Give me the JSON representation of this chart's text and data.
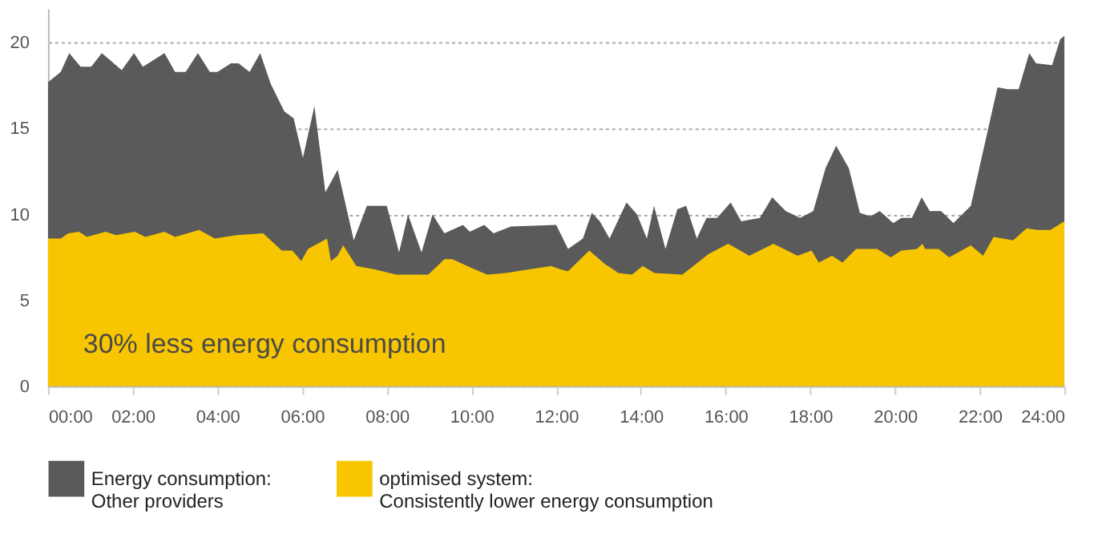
{
  "chart_data": {
    "type": "area",
    "xlim": [
      0,
      24
    ],
    "ylim": [
      0,
      22
    ],
    "xticks": [
      {
        "value": 0,
        "label": "00:00"
      },
      {
        "value": 2,
        "label": "02:00"
      },
      {
        "value": 4,
        "label": "04:00"
      },
      {
        "value": 6,
        "label": "06:00"
      },
      {
        "value": 8,
        "label": "08:00"
      },
      {
        "value": 10,
        "label": "10:00"
      },
      {
        "value": 12,
        "label": "12:00"
      },
      {
        "value": 14,
        "label": "14:00"
      },
      {
        "value": 16,
        "label": "16:00"
      },
      {
        "value": 18,
        "label": "18:00"
      },
      {
        "value": 20,
        "label": "20:00"
      },
      {
        "value": 22,
        "label": "22:00"
      },
      {
        "value": 24,
        "label": "24:00"
      }
    ],
    "yticks": [
      0,
      5,
      10,
      15,
      20
    ],
    "grid": "y",
    "legend": "bottom",
    "annotations": [
      "30% less energy consumption"
    ],
    "series": [
      {
        "name": "Energy consumption:\nOther providers",
        "color": "#5a5a5a",
        "x": [
          0,
          0.3,
          0.5,
          0.77,
          1.02,
          1.27,
          1.74,
          2.03,
          2.24,
          2.75,
          3.0,
          3.25,
          3.54,
          3.82,
          4.0,
          4.32,
          4.5,
          4.76,
          5.01,
          5.26,
          5.58,
          5.8,
          6.02,
          6.29,
          6.55,
          6.84,
          7.22,
          7.53,
          8.0,
          8.29,
          8.5,
          8.82,
          9.08,
          9.36,
          9.8,
          9.96,
          10.3,
          10.52,
          10.93,
          12.0,
          12.28,
          12.63,
          12.84,
          13.03,
          13.26,
          13.66,
          13.91,
          14.14,
          14.31,
          14.58,
          14.86,
          15.07,
          15.32,
          15.55,
          15.8,
          16.12,
          16.37,
          16.81,
          17.1,
          17.42,
          17.76,
          18.07,
          18.36,
          18.61,
          18.91,
          19.17,
          19.42,
          19.64,
          19.96,
          20.15,
          20.4,
          20.63,
          20.82,
          21.09,
          21.38,
          21.79,
          22.42,
          22.67,
          22.92,
          23.17,
          23.33,
          23.71,
          23.9,
          24.0
        ],
        "values": [
          17.7,
          18.3,
          19.4,
          18.6,
          18.6,
          19.4,
          18.4,
          19.4,
          18.6,
          19.4,
          18.3,
          18.3,
          19.4,
          18.3,
          18.3,
          18.8,
          18.8,
          18.3,
          19.4,
          17.6,
          16.0,
          15.6,
          13.3,
          16.3,
          11.3,
          12.6,
          8.5,
          10.5,
          10.5,
          7.8,
          10.0,
          7.8,
          10.0,
          8.9,
          9.4,
          9.0,
          9.4,
          8.9,
          9.3,
          9.4,
          8.0,
          8.6,
          10.1,
          9.6,
          8.6,
          10.7,
          10.0,
          8.6,
          10.5,
          8.0,
          10.3,
          10.5,
          8.6,
          9.8,
          9.8,
          10.7,
          9.6,
          9.8,
          11.0,
          10.2,
          9.8,
          10.2,
          12.7,
          14.0,
          12.7,
          10.1,
          9.9,
          10.2,
          9.5,
          9.8,
          9.8,
          11.0,
          10.2,
          10.2,
          9.5,
          10.5,
          17.4,
          17.3,
          17.3,
          19.4,
          18.8,
          18.7,
          20.2,
          20.4
        ]
      },
      {
        "name": "optimised system:\nConsistently lower energy consumption",
        "color": "#f8c600",
        "x": [
          0,
          0.3,
          0.48,
          0.73,
          0.92,
          1.36,
          1.61,
          2.05,
          2.3,
          2.75,
          3.0,
          3.57,
          3.94,
          4.45,
          5.08,
          5.52,
          5.77,
          5.98,
          6.14,
          6.59,
          6.68,
          6.84,
          6.97,
          7.28,
          7.72,
          8.22,
          8.98,
          9.36,
          9.55,
          9.99,
          10.37,
          10.81,
          11.88,
          12.1,
          12.28,
          12.53,
          12.78,
          13.16,
          13.47,
          13.79,
          14.04,
          14.32,
          14.98,
          15.24,
          15.6,
          16.06,
          16.56,
          17.13,
          17.7,
          18.03,
          18.2,
          18.51,
          18.76,
          19.08,
          19.58,
          19.9,
          20.15,
          20.52,
          20.65,
          20.71,
          21.03,
          21.28,
          21.79,
          22.08,
          22.33,
          22.79,
          23.11,
          23.36,
          23.67,
          24.0
        ],
        "values": [
          8.6,
          8.6,
          8.9,
          9.0,
          8.7,
          9.0,
          8.8,
          9.0,
          8.7,
          9.0,
          8.7,
          9.1,
          8.6,
          8.8,
          8.9,
          7.9,
          7.9,
          7.3,
          8.0,
          8.6,
          7.3,
          7.6,
          8.2,
          7.0,
          6.8,
          6.5,
          6.5,
          7.4,
          7.4,
          6.9,
          6.5,
          6.6,
          7.0,
          6.8,
          6.7,
          7.3,
          7.9,
          7.1,
          6.6,
          6.5,
          7.0,
          6.6,
          6.5,
          7.0,
          7.7,
          8.3,
          7.6,
          8.3,
          7.6,
          7.9,
          7.2,
          7.6,
          7.2,
          8.0,
          8.0,
          7.5,
          7.9,
          8.0,
          8.3,
          8.0,
          8.0,
          7.5,
          8.2,
          7.6,
          8.7,
          8.5,
          9.2,
          9.1,
          9.1,
          9.6
        ]
      }
    ]
  }
}
